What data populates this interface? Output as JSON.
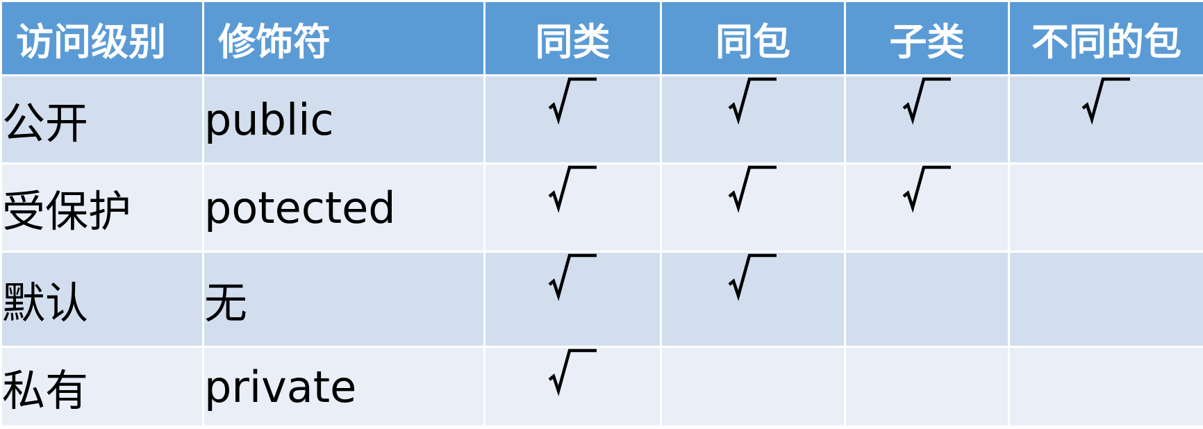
{
  "table": {
    "headers": [
      "访问级别",
      "修饰符",
      "同类",
      "同包",
      "子类",
      "不同的包"
    ],
    "rows": [
      {
        "level": "公开",
        "modifier": "public",
        "same_class": "√",
        "same_package": "√",
        "subclass": "√",
        "other_package": "√"
      },
      {
        "level": "受保护",
        "modifier": "potected",
        "same_class": "√",
        "same_package": "√",
        "subclass": "√",
        "other_package": ""
      },
      {
        "level": "默认",
        "modifier": "无",
        "same_class": "√",
        "same_package": "√",
        "subclass": "",
        "other_package": ""
      },
      {
        "level": "私有",
        "modifier": "private",
        "same_class": "√",
        "same_package": "",
        "subclass": "",
        "other_package": ""
      }
    ]
  },
  "colors": {
    "header_bg": "#5b9bd5",
    "header_text": "#ffffff",
    "row_band_dark": "#d2deee",
    "row_band_light": "#eaeff7",
    "grid_line": "#ffffff",
    "body_text": "#000000"
  },
  "icons": {
    "check": "check-mark-icon"
  }
}
